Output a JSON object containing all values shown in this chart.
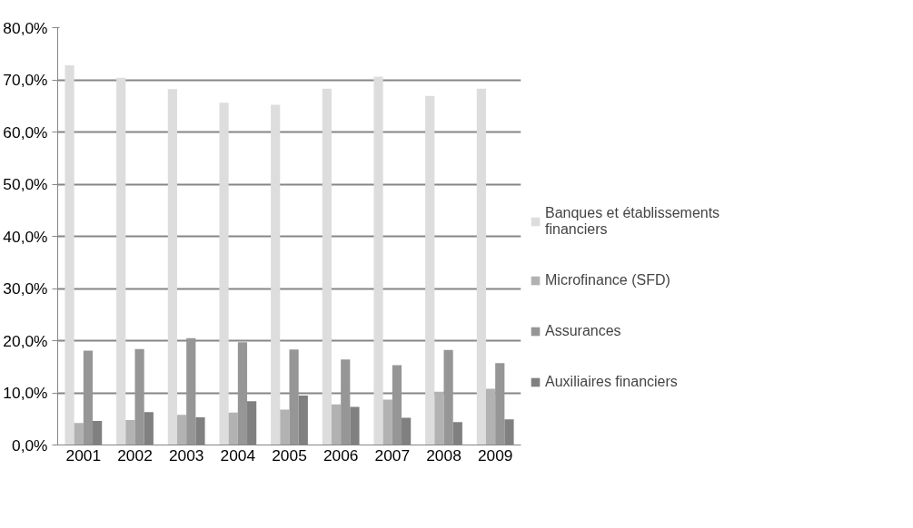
{
  "chart_data": {
    "type": "bar",
    "categories": [
      "2001",
      "2002",
      "2003",
      "2004",
      "2005",
      "2006",
      "2007",
      "2008",
      "2009"
    ],
    "series": [
      {
        "name": "Banques et établissements financiers",
        "color": "#dddddd",
        "values": [
          72.8,
          70.4,
          68.2,
          65.6,
          65.2,
          68.3,
          70.6,
          66.9,
          68.3
        ]
      },
      {
        "name": "Microfinance (SFD)",
        "color": "#b2b2b2",
        "values": [
          4.2,
          4.8,
          5.8,
          6.2,
          6.8,
          7.8,
          8.7,
          10.2,
          10.8
        ]
      },
      {
        "name": "Assurances",
        "color": "#969696",
        "values": [
          18.1,
          18.4,
          20.5,
          19.7,
          18.3,
          16.4,
          15.3,
          18.2,
          15.7
        ]
      },
      {
        "name": "Auxiliaires financiers",
        "color": "#808080",
        "values": [
          4.6,
          6.3,
          5.3,
          8.4,
          9.5,
          7.3,
          5.2,
          4.4,
          4.9
        ]
      }
    ],
    "ylim": [
      0,
      80
    ],
    "yticks": [
      {
        "value": 0,
        "label": "0,0%"
      },
      {
        "value": 10,
        "label": "10,0%"
      },
      {
        "value": 20,
        "label": "20,0%"
      },
      {
        "value": 30,
        "label": "30,0%"
      },
      {
        "value": 40,
        "label": "40,0%"
      },
      {
        "value": 50,
        "label": "50,0%"
      },
      {
        "value": 60,
        "label": "60,0%"
      },
      {
        "value": 70,
        "label": "70,0%"
      },
      {
        "value": 80,
        "label": "80,0%"
      }
    ],
    "grid": "y",
    "legend": "right"
  }
}
